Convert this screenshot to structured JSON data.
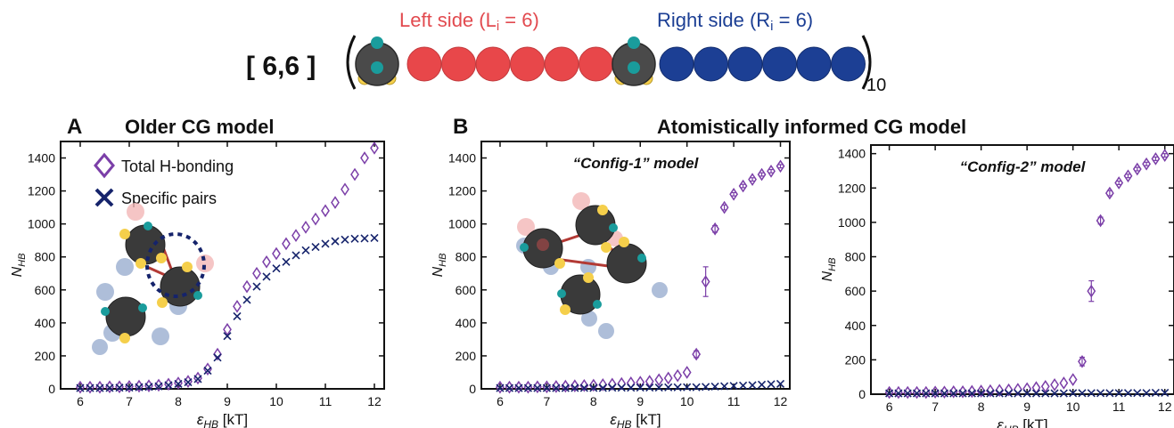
{
  "header": {
    "sequence_label": "[ 6,6 ]",
    "left_label": "Left side (L",
    "left_sub": "i",
    "left_eq": " = 6)",
    "right_label": "Right side (R",
    "right_sub": "i",
    "right_eq": " = 6)",
    "repeat": "10",
    "colors": {
      "left_bead": "#e8474a",
      "right_bead": "#1c3f94",
      "hb_bead": "#4a4a4a",
      "donor": "#1a9c9c",
      "acceptor": "#f5cf4b"
    }
  },
  "panels": {
    "A": {
      "letter": "A",
      "title": "Older CG model"
    },
    "B": {
      "letter": "B",
      "title": "Atomistically informed CG model"
    }
  },
  "legend": {
    "total": "Total H-bonding",
    "specific": "Specific pairs"
  },
  "colors": {
    "total": "#7b3fa8",
    "specific": "#15236b"
  },
  "chart_data": [
    {
      "type": "scatter",
      "panel": "A",
      "title": "Older CG model",
      "xlabel": "ε_HB [kT]",
      "ylabel": "N_HB",
      "xlim": [
        5.6,
        12.2
      ],
      "ylim": [
        0,
        1500
      ],
      "xticks": [
        "6",
        "7",
        "8",
        "9",
        "10",
        "11",
        "12"
      ],
      "yticks": [
        "0",
        "200",
        "400",
        "600",
        "800",
        "1000",
        "1200",
        "1400"
      ],
      "legend": "top-left",
      "series": [
        {
          "name": "Total H-bonding",
          "marker": "diamond",
          "x": [
            6.0,
            6.2,
            6.4,
            6.6,
            6.8,
            7.0,
            7.2,
            7.4,
            7.6,
            7.8,
            8.0,
            8.2,
            8.4,
            8.6,
            8.8,
            9.0,
            9.2,
            9.4,
            9.6,
            9.8,
            10.0,
            10.2,
            10.4,
            10.6,
            10.8,
            11.0,
            11.2,
            11.4,
            11.6,
            11.8,
            12.0
          ],
          "y": [
            10,
            10,
            10,
            12,
            12,
            14,
            16,
            18,
            22,
            28,
            35,
            45,
            65,
            120,
            210,
            360,
            500,
            620,
            700,
            770,
            820,
            880,
            930,
            980,
            1030,
            1080,
            1130,
            1210,
            1300,
            1400,
            1460
          ]
        },
        {
          "name": "Specific pairs",
          "marker": "x",
          "x": [
            6.0,
            6.2,
            6.4,
            6.6,
            6.8,
            7.0,
            7.2,
            7.4,
            7.6,
            7.8,
            8.0,
            8.2,
            8.4,
            8.6,
            8.8,
            9.0,
            9.2,
            9.4,
            9.6,
            9.8,
            10.0,
            10.2,
            10.4,
            10.6,
            10.8,
            11.0,
            11.2,
            11.4,
            11.6,
            11.8,
            12.0
          ],
          "y": [
            5,
            5,
            5,
            6,
            7,
            8,
            10,
            12,
            15,
            22,
            30,
            40,
            60,
            110,
            190,
            320,
            440,
            540,
            620,
            680,
            730,
            770,
            810,
            840,
            860,
            880,
            895,
            905,
            910,
            912,
            915
          ]
        }
      ]
    },
    {
      "type": "scatter",
      "panel": "B-left",
      "title": "“Config-1” model",
      "xlabel": "ε_HB [kT]",
      "ylabel": "N_HB",
      "xlim": [
        5.6,
        12.2
      ],
      "ylim": [
        0,
        1500
      ],
      "xticks": [
        "6",
        "7",
        "8",
        "9",
        "10",
        "11",
        "12"
      ],
      "yticks": [
        "0",
        "200",
        "400",
        "600",
        "800",
        "1000",
        "1200",
        "1400"
      ],
      "series": [
        {
          "name": "Total H-bonding",
          "marker": "diamond",
          "x": [
            6.0,
            6.2,
            6.4,
            6.6,
            6.8,
            7.0,
            7.2,
            7.4,
            7.6,
            7.8,
            8.0,
            8.2,
            8.4,
            8.6,
            8.8,
            9.0,
            9.2,
            9.4,
            9.6,
            9.8,
            10.0,
            10.2,
            10.4,
            10.6,
            10.8,
            11.0,
            11.2,
            11.4,
            11.6,
            11.8,
            12.0
          ],
          "y": [
            10,
            10,
            10,
            10,
            12,
            12,
            14,
            16,
            18,
            20,
            22,
            25,
            28,
            32,
            36,
            40,
            45,
            55,
            65,
            80,
            100,
            210,
            650,
            970,
            1100,
            1180,
            1230,
            1270,
            1300,
            1320,
            1350
          ],
          "err": [
            0,
            0,
            0,
            0,
            0,
            0,
            0,
            0,
            0,
            0,
            0,
            0,
            0,
            0,
            0,
            0,
            0,
            0,
            0,
            0,
            0,
            20,
            90,
            20,
            15,
            10,
            10,
            10,
            10,
            10,
            10
          ]
        },
        {
          "name": "Specific pairs",
          "marker": "x",
          "x": [
            6.0,
            6.2,
            6.4,
            6.6,
            6.8,
            7.0,
            7.2,
            7.4,
            7.6,
            7.8,
            8.0,
            8.2,
            8.4,
            8.6,
            8.8,
            9.0,
            9.2,
            9.4,
            9.6,
            9.8,
            10.0,
            10.2,
            10.4,
            10.6,
            10.8,
            11.0,
            11.2,
            11.4,
            11.6,
            11.8,
            12.0
          ],
          "y": [
            5,
            5,
            5,
            5,
            5,
            5,
            5,
            5,
            6,
            6,
            6,
            6,
            7,
            7,
            7,
            8,
            8,
            8,
            9,
            9,
            10,
            10,
            12,
            14,
            16,
            18,
            20,
            22,
            25,
            28,
            30
          ]
        }
      ]
    },
    {
      "type": "scatter",
      "panel": "B-right",
      "title": "“Config-2” model",
      "xlabel": "ε_HB [kT]",
      "ylabel": "N_HB",
      "xlim": [
        5.6,
        12.2
      ],
      "ylim": [
        0,
        1450
      ],
      "xticks": [
        "6",
        "7",
        "8",
        "9",
        "10",
        "11",
        "12"
      ],
      "yticks": [
        "0",
        "200",
        "400",
        "600",
        "800",
        "1000",
        "1200",
        "1400"
      ],
      "series": [
        {
          "name": "Total H-bonding",
          "marker": "diamond",
          "x": [
            6.0,
            6.2,
            6.4,
            6.6,
            6.8,
            7.0,
            7.2,
            7.4,
            7.6,
            7.8,
            8.0,
            8.2,
            8.4,
            8.6,
            8.8,
            9.0,
            9.2,
            9.4,
            9.6,
            9.8,
            10.0,
            10.2,
            10.4,
            10.6,
            10.8,
            11.0,
            11.2,
            11.4,
            11.6,
            11.8,
            12.0
          ],
          "y": [
            10,
            10,
            10,
            10,
            10,
            12,
            12,
            14,
            14,
            16,
            18,
            20,
            22,
            25,
            28,
            32,
            38,
            45,
            55,
            65,
            85,
            190,
            600,
            1010,
            1170,
            1230,
            1270,
            1310,
            1340,
            1370,
            1390
          ],
          "err": [
            0,
            0,
            0,
            0,
            0,
            0,
            0,
            0,
            0,
            0,
            0,
            0,
            0,
            0,
            0,
            0,
            0,
            0,
            0,
            0,
            0,
            25,
            60,
            20,
            15,
            10,
            10,
            10,
            10,
            10,
            10
          ]
        },
        {
          "name": "Specific pairs",
          "marker": "x",
          "x": [
            6.0,
            6.2,
            6.4,
            6.6,
            6.8,
            7.0,
            7.2,
            7.4,
            7.6,
            7.8,
            8.0,
            8.2,
            8.4,
            8.6,
            8.8,
            9.0,
            9.2,
            9.4,
            9.6,
            9.8,
            10.0,
            10.2,
            10.4,
            10.6,
            10.8,
            11.0,
            11.2,
            11.4,
            11.6,
            11.8,
            12.0
          ],
          "y": [
            5,
            5,
            5,
            5,
            5,
            5,
            5,
            5,
            5,
            5,
            5,
            5,
            5,
            5,
            5,
            5,
            5,
            5,
            5,
            5,
            6,
            6,
            6,
            6,
            6,
            6,
            7,
            7,
            7,
            8,
            8
          ]
        }
      ]
    }
  ]
}
